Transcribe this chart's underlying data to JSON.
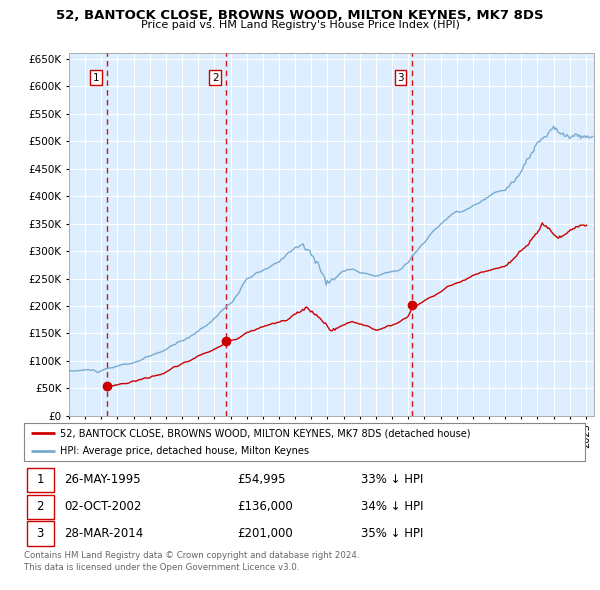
{
  "title": "52, BANTOCK CLOSE, BROWNS WOOD, MILTON KEYNES, MK7 8DS",
  "subtitle": "Price paid vs. HM Land Registry's House Price Index (HPI)",
  "legend_line1": "52, BANTOCK CLOSE, BROWNS WOOD, MILTON KEYNES, MK7 8DS (detached house)",
  "legend_line2": "HPI: Average price, detached house, Milton Keynes",
  "footnote1": "Contains HM Land Registry data © Crown copyright and database right 2024.",
  "footnote2": "This data is licensed under the Open Government Licence v3.0.",
  "transactions": [
    {
      "num": 1,
      "date": "26-MAY-1995",
      "price": 54995,
      "pct": "33% ↓ HPI"
    },
    {
      "num": 2,
      "date": "02-OCT-2002",
      "price": 136000,
      "pct": "34% ↓ HPI"
    },
    {
      "num": 3,
      "date": "28-MAR-2014",
      "price": 201000,
      "pct": "35% ↓ HPI"
    }
  ],
  "vline_dates": [
    1995.38,
    2002.75,
    2014.23
  ],
  "sale_points": [
    [
      1995.38,
      54995
    ],
    [
      2002.75,
      136000
    ],
    [
      2014.23,
      201000
    ]
  ],
  "ylim": [
    0,
    660000
  ],
  "xlim_start": 1993.0,
  "xlim_end": 2025.5,
  "ytick_values": [
    0,
    50000,
    100000,
    150000,
    200000,
    250000,
    300000,
    350000,
    400000,
    450000,
    500000,
    550000,
    600000,
    650000
  ],
  "xtick_values": [
    1993,
    1994,
    1995,
    1996,
    1997,
    1998,
    1999,
    2000,
    2001,
    2002,
    2003,
    2004,
    2005,
    2006,
    2007,
    2008,
    2009,
    2010,
    2011,
    2012,
    2013,
    2014,
    2015,
    2016,
    2017,
    2018,
    2019,
    2020,
    2021,
    2022,
    2023,
    2024,
    2025
  ],
  "red_color": "#cc0000",
  "blue_color": "#7aabcf",
  "bg_color": "#ddeeff",
  "grid_color": "#ffffff",
  "vline_color": "#cc0000",
  "label_bg": "#ffffff",
  "label_border": "#cc0000"
}
